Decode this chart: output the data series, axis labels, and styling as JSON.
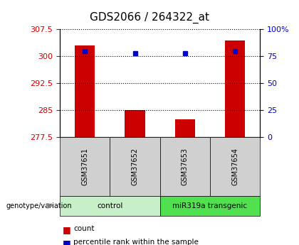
{
  "title": "GDS2066 / 264322_at",
  "samples": [
    "GSM37651",
    "GSM37652",
    "GSM37653",
    "GSM37654"
  ],
  "count_values": [
    303.0,
    285.0,
    282.5,
    304.5
  ],
  "percentile_values": [
    80,
    78,
    78,
    80
  ],
  "y_min": 277.5,
  "y_max": 307.5,
  "y_ticks": [
    277.5,
    285,
    292.5,
    300,
    307.5
  ],
  "y_right_ticks": [
    0,
    25,
    50,
    75,
    100
  ],
  "y_right_labels": [
    "0",
    "25",
    "50",
    "75",
    "100%"
  ],
  "groups": [
    {
      "label": "control",
      "samples": [
        0,
        1
      ],
      "color": "#c8f0c8"
    },
    {
      "label": "miR319a transgenic",
      "samples": [
        2,
        3
      ],
      "color": "#50e050"
    }
  ],
  "bar_color": "#cc0000",
  "dot_color": "#0000cc",
  "bar_width": 0.4,
  "left_color": "#cc0000",
  "right_color": "#0000cc",
  "plot_bg": "#ffffff",
  "sample_box_color": "#d0d0d0",
  "title_fontsize": 11,
  "tick_fontsize": 8
}
